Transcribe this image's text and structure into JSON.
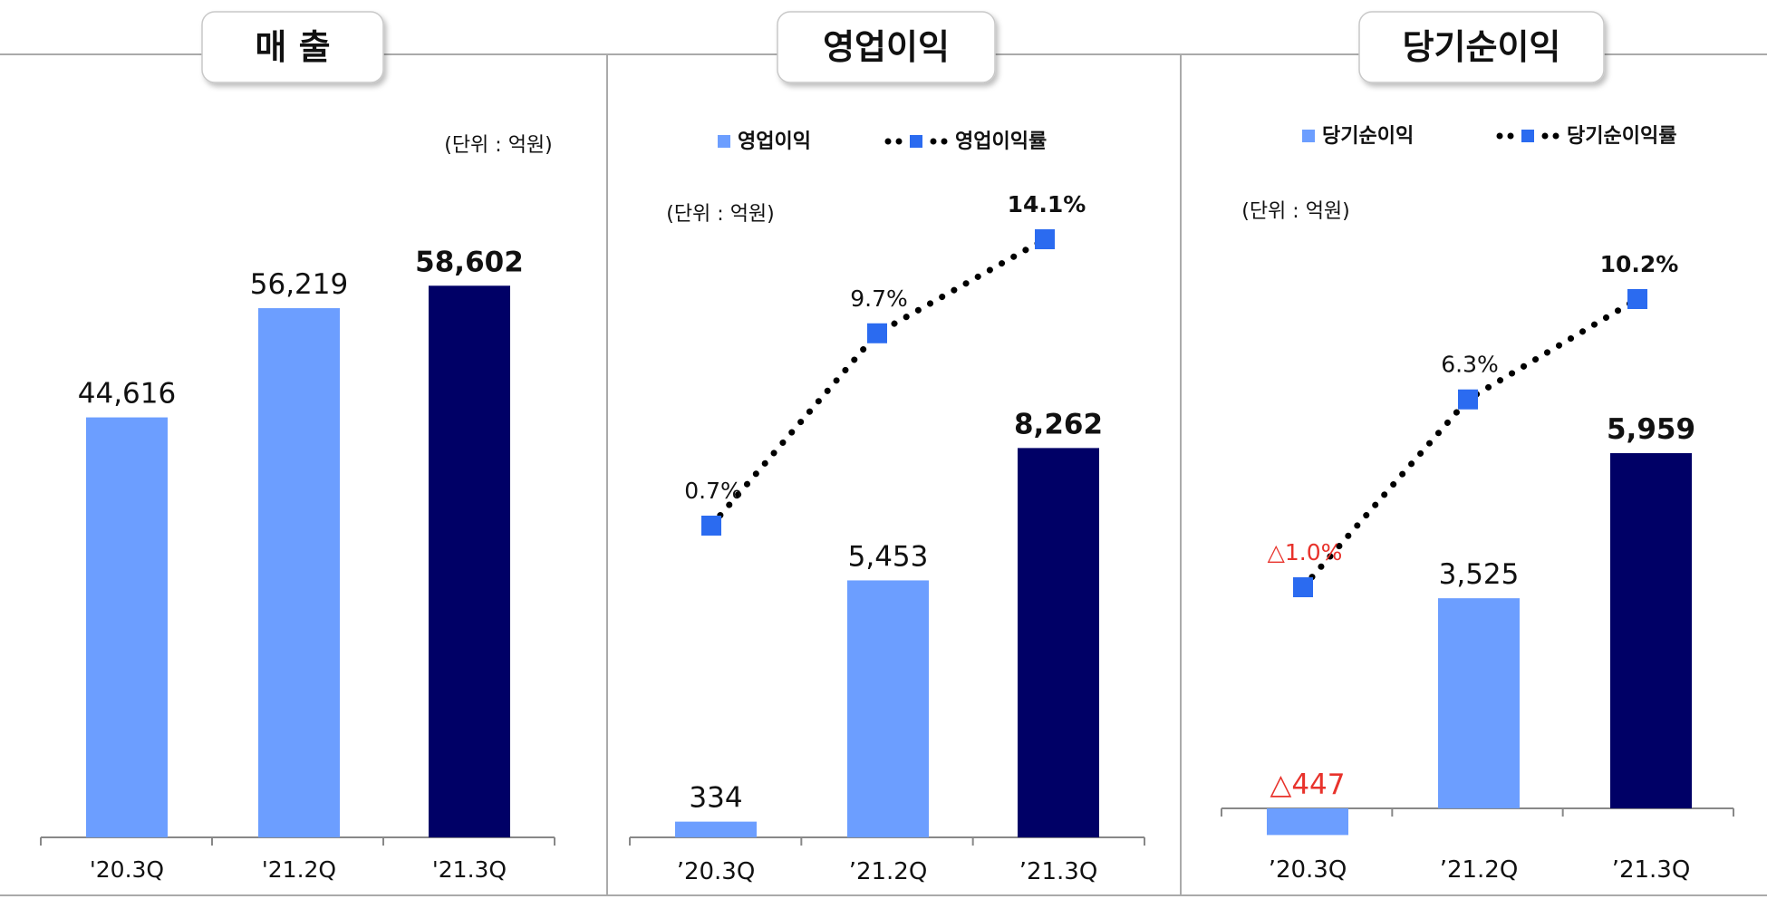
{
  "colors": {
    "light_bar": "#6C9EFF",
    "dark_bar": "#000066",
    "marker": "#2B6BF0",
    "negative": "#E8322B",
    "text": "#111111",
    "frame": "#AAAAAA"
  },
  "chart_data": [
    {
      "type": "bar",
      "title": "매 출",
      "unit_label": "(단위 : 억원)",
      "categories": [
        "'20.3Q",
        "'21.2Q",
        "'21.3Q"
      ],
      "series": [
        {
          "name": "매출",
          "values": [
            44616,
            56219,
            58602
          ],
          "value_labels": [
            "44,616",
            "56,219",
            "58,602"
          ]
        }
      ],
      "ylim": [
        0,
        62000
      ]
    },
    {
      "type": "bar",
      "title": "영업이익",
      "unit_label": "(단위 : 억원)",
      "categories": [
        "’20.3Q",
        "’21.2Q",
        "’21.3Q"
      ],
      "series": [
        {
          "name": "영업이익",
          "values": [
            334,
            5453,
            8262
          ],
          "value_labels": [
            "334",
            "5,453",
            "8,262"
          ]
        },
        {
          "name": "영업이익률",
          "type": "line",
          "values": [
            0.7,
            9.7,
            14.1
          ],
          "value_labels": [
            "0.7%",
            "9.7%",
            "14.1%"
          ]
        }
      ],
      "ylim": [
        0,
        12000
      ],
      "y2lim": [
        -25,
        20
      ]
    },
    {
      "type": "bar",
      "title": "당기순이익",
      "unit_label": "(단위 : 억원)",
      "categories": [
        "’20.3Q",
        "’21.2Q",
        "’21.3Q"
      ],
      "series": [
        {
          "name": "당기순이익",
          "values": [
            -447,
            3525,
            5959
          ],
          "value_labels": [
            "△447",
            "3,525",
            "5,959"
          ]
        },
        {
          "name": "당기순이익률",
          "type": "line",
          "values": [
            -1.0,
            6.3,
            10.2
          ],
          "value_labels": [
            "△1.0%",
            "6.3%",
            "10.2%"
          ]
        }
      ],
      "ylim": [
        -900,
        9000
      ],
      "y2lim": [
        -25,
        20
      ]
    }
  ]
}
